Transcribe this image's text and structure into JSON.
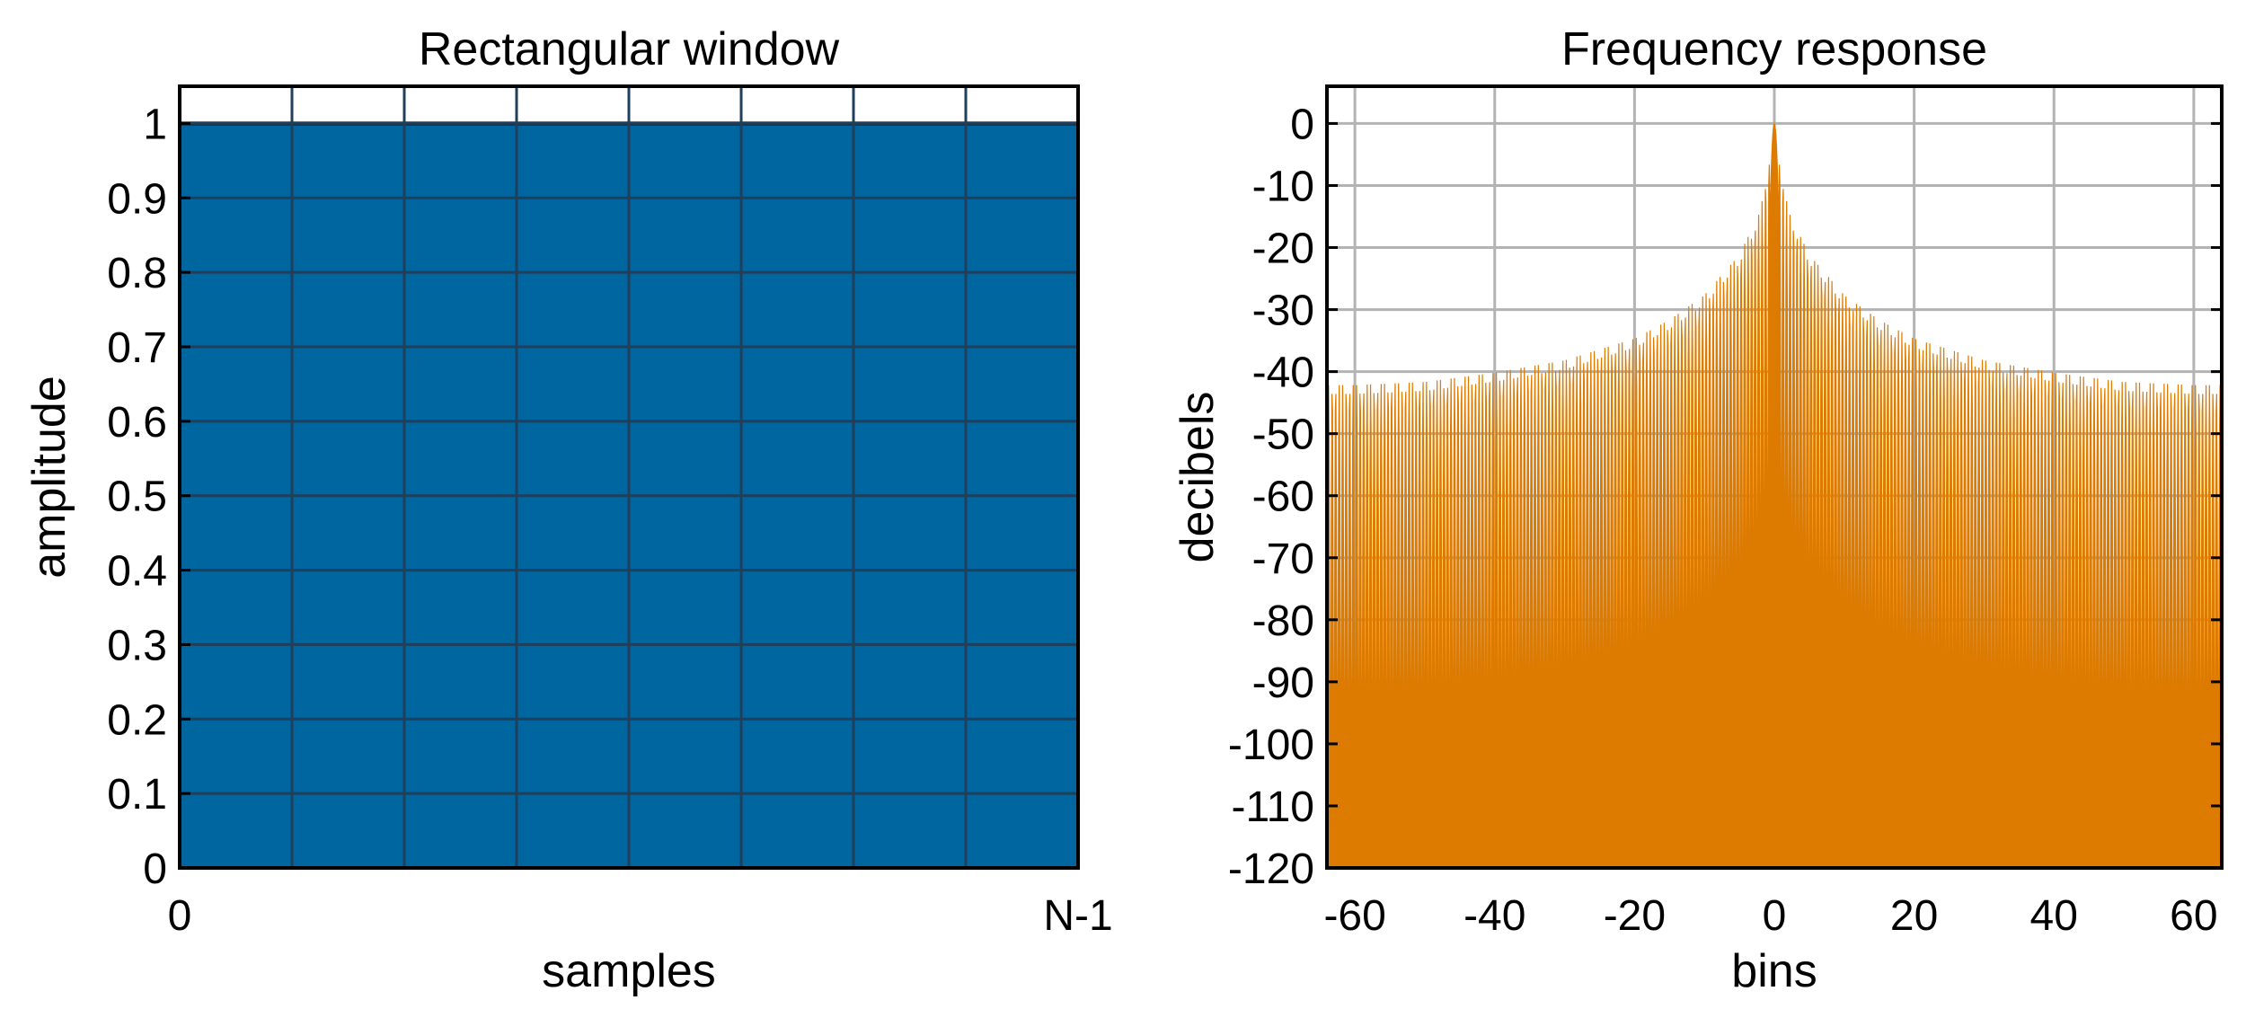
{
  "chart_data": [
    {
      "type": "area",
      "title": "Rectangular window",
      "xlabel": "samples",
      "ylabel": "amplitude",
      "x_tick_labels": [
        "0",
        "N-1"
      ],
      "y_ticks": [
        0,
        0.1,
        0.2,
        0.3,
        0.4,
        0.5,
        0.6,
        0.7,
        0.8,
        0.9,
        1
      ],
      "y_tick_labels": [
        "0",
        "0.1",
        "0.2",
        "0.3",
        "0.4",
        "0.5",
        "0.6",
        "0.7",
        "0.8",
        "0.9",
        "1"
      ],
      "xlim": [
        0,
        1
      ],
      "ylim": [
        0,
        1.05
      ],
      "x": [
        0,
        1
      ],
      "y": [
        1,
        1
      ],
      "grid": true,
      "color": "#0066a0"
    },
    {
      "type": "area",
      "title": "Frequency response",
      "xlabel": "bins",
      "ylabel": "decibels",
      "x_ticks": [
        -60,
        -40,
        -20,
        0,
        20,
        40,
        60
      ],
      "x_tick_labels": [
        "-60",
        "-40",
        "-20",
        "0",
        "20",
        "40",
        "60"
      ],
      "y_ticks": [
        0,
        -10,
        -20,
        -30,
        -40,
        -50,
        -60,
        -70,
        -80,
        -90,
        -100,
        -110,
        -120
      ],
      "y_tick_labels": [
        "0",
        "-10",
        "-20",
        "-30",
        "-40",
        "-50",
        "-60",
        "-70",
        "-80",
        "-90",
        "-100",
        "-110",
        "-120"
      ],
      "xlim": [
        -64,
        64
      ],
      "ylim": [
        -120,
        6
      ],
      "sidelobe_peak_envelope": {
        "x": [
          -64,
          -60,
          -50,
          -40,
          -30,
          -20,
          -15,
          -10,
          -5,
          -2,
          0,
          2,
          5,
          10,
          15,
          20,
          30,
          40,
          50,
          60,
          64
        ],
        "y": [
          -42,
          -42,
          -41.5,
          -40,
          -38,
          -34.5,
          -31.5,
          -27.5,
          -21,
          -14,
          0,
          -14,
          -21,
          -27.5,
          -31.5,
          -34.5,
          -38,
          -40,
          -41.5,
          -42,
          -42
        ]
      },
      "grid": true,
      "color": "#dd7a00"
    }
  ]
}
